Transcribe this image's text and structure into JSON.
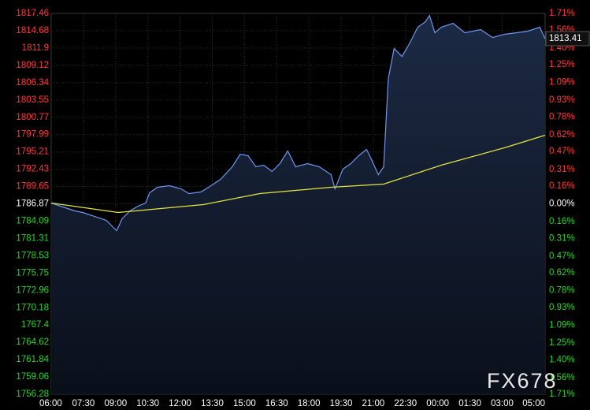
{
  "chart_data": {
    "type": "line",
    "xlim": [
      "06:00",
      "05:00"
    ],
    "xticks": [
      "06:00",
      "07:30",
      "09:00",
      "10:30",
      "12:00",
      "13:30",
      "15:00",
      "16:30",
      "18:00",
      "19:30",
      "21:00",
      "22:30",
      "00:00",
      "01:30",
      "03:00",
      "05:00"
    ],
    "ylim": [
      1756.28,
      1817.46
    ],
    "yticks": [
      1817.46,
      1814.68,
      1811.9,
      1809.12,
      1806.34,
      1803.55,
      1800.77,
      1797.99,
      1795.21,
      1792.43,
      1789.65,
      1786.87,
      1784.09,
      1781.31,
      1778.53,
      1775.75,
      1772.96,
      1770.18,
      1767.4,
      1764.62,
      1761.84,
      1759.06,
      1756.28
    ],
    "y2lim": [
      -1.71,
      1.71
    ],
    "y2ticks": [
      {
        "value": 1.71,
        "label": "1.71%"
      },
      {
        "value": 1.56,
        "label": "1.56%"
      },
      {
        "value": 1.4,
        "label": "1.40%"
      },
      {
        "value": 1.25,
        "label": "1.25%"
      },
      {
        "value": 1.09,
        "label": "1.09%"
      },
      {
        "value": 0.93,
        "label": "0.93%"
      },
      {
        "value": 0.78,
        "label": "0.78%"
      },
      {
        "value": 0.62,
        "label": "0.62%"
      },
      {
        "value": 0.47,
        "label": "0.47%"
      },
      {
        "value": 0.31,
        "label": "0.31%"
      },
      {
        "value": 0.16,
        "label": "0.16%"
      },
      {
        "value": 0,
        "label": "0.00%"
      },
      {
        "value": -0.16,
        "label": "0.16%"
      },
      {
        "value": -0.31,
        "label": "0.31%"
      },
      {
        "value": -0.47,
        "label": "0.47%"
      },
      {
        "value": -0.62,
        "label": "0.62%"
      },
      {
        "value": -0.78,
        "label": "0.78%"
      },
      {
        "value": -0.93,
        "label": "0.93%"
      },
      {
        "value": -1.09,
        "label": "1.09%"
      },
      {
        "value": -1.25,
        "label": "1.25%"
      },
      {
        "value": -1.4,
        "label": "1.40%"
      },
      {
        "value": -1.56,
        "label": "1.56%"
      },
      {
        "value": -1.71,
        "label": "1.71%"
      }
    ],
    "grid": true,
    "up_color": "#ff3b3b",
    "down_color": "#2fd12f",
    "flat_color": "#ffffff",
    "series": [
      {
        "color": "#6f96f0",
        "area": true,
        "x": [
          "06:00",
          "06:33",
          "07:06",
          "07:28",
          "08:01",
          "08:34",
          "08:56",
          "09:03",
          "09:18",
          "09:40",
          "10:02",
          "10:24",
          "10:35",
          "10:57",
          "11:30",
          "12:03",
          "12:25",
          "12:58",
          "13:20",
          "13:53",
          "14:26",
          "14:48",
          "15:10",
          "15:32",
          "15:54",
          "16:17",
          "16:39",
          "17:01",
          "17:23",
          "17:56",
          "18:29",
          "19:02",
          "19:13",
          "19:35",
          "19:57",
          "20:19",
          "20:41",
          "20:52",
          "21:14",
          "21:29",
          "21:36",
          "21:42",
          "21:58",
          "22:20",
          "22:42",
          "23:04",
          "23:26",
          "23:37",
          "23:52",
          "00:10",
          "00:43",
          "01:16",
          "02:00",
          "02:33",
          "03:06",
          "03:39",
          "04:12",
          "04:45",
          "05:00"
        ],
        "values": [
          1787.0,
          1786.36,
          1785.73,
          1785.48,
          1784.85,
          1784.21,
          1782.94,
          1782.56,
          1784.46,
          1785.73,
          1786.49,
          1787.0,
          1788.64,
          1789.53,
          1789.78,
          1789.28,
          1788.52,
          1788.77,
          1789.53,
          1790.8,
          1792.82,
          1794.85,
          1794.6,
          1792.82,
          1793.08,
          1792.06,
          1793.33,
          1795.36,
          1792.82,
          1793.33,
          1792.82,
          1791.56,
          1789.28,
          1792.44,
          1793.33,
          1794.6,
          1795.61,
          1794.34,
          1791.56,
          1792.82,
          1800.67,
          1807.01,
          1811.82,
          1810.55,
          1812.71,
          1815.24,
          1816.13,
          1817.14,
          1814.35,
          1815.24,
          1815.87,
          1814.35,
          1814.86,
          1813.59,
          1814.1,
          1814.35,
          1814.61,
          1815.24,
          1813.41
        ]
      },
      {
        "color": "#e6e640",
        "area": false,
        "x": [
          "06:00",
          "09:07",
          "13:05",
          "15:43",
          "19:02",
          "21:29",
          "00:10",
          "03:06",
          "05:00"
        ],
        "values": [
          1787.0,
          1785.48,
          1786.74,
          1788.52,
          1789.53,
          1790.04,
          1793.08,
          1795.86,
          1797.89
        ]
      }
    ],
    "last_price": 1813.41,
    "watermark": "FX678"
  }
}
